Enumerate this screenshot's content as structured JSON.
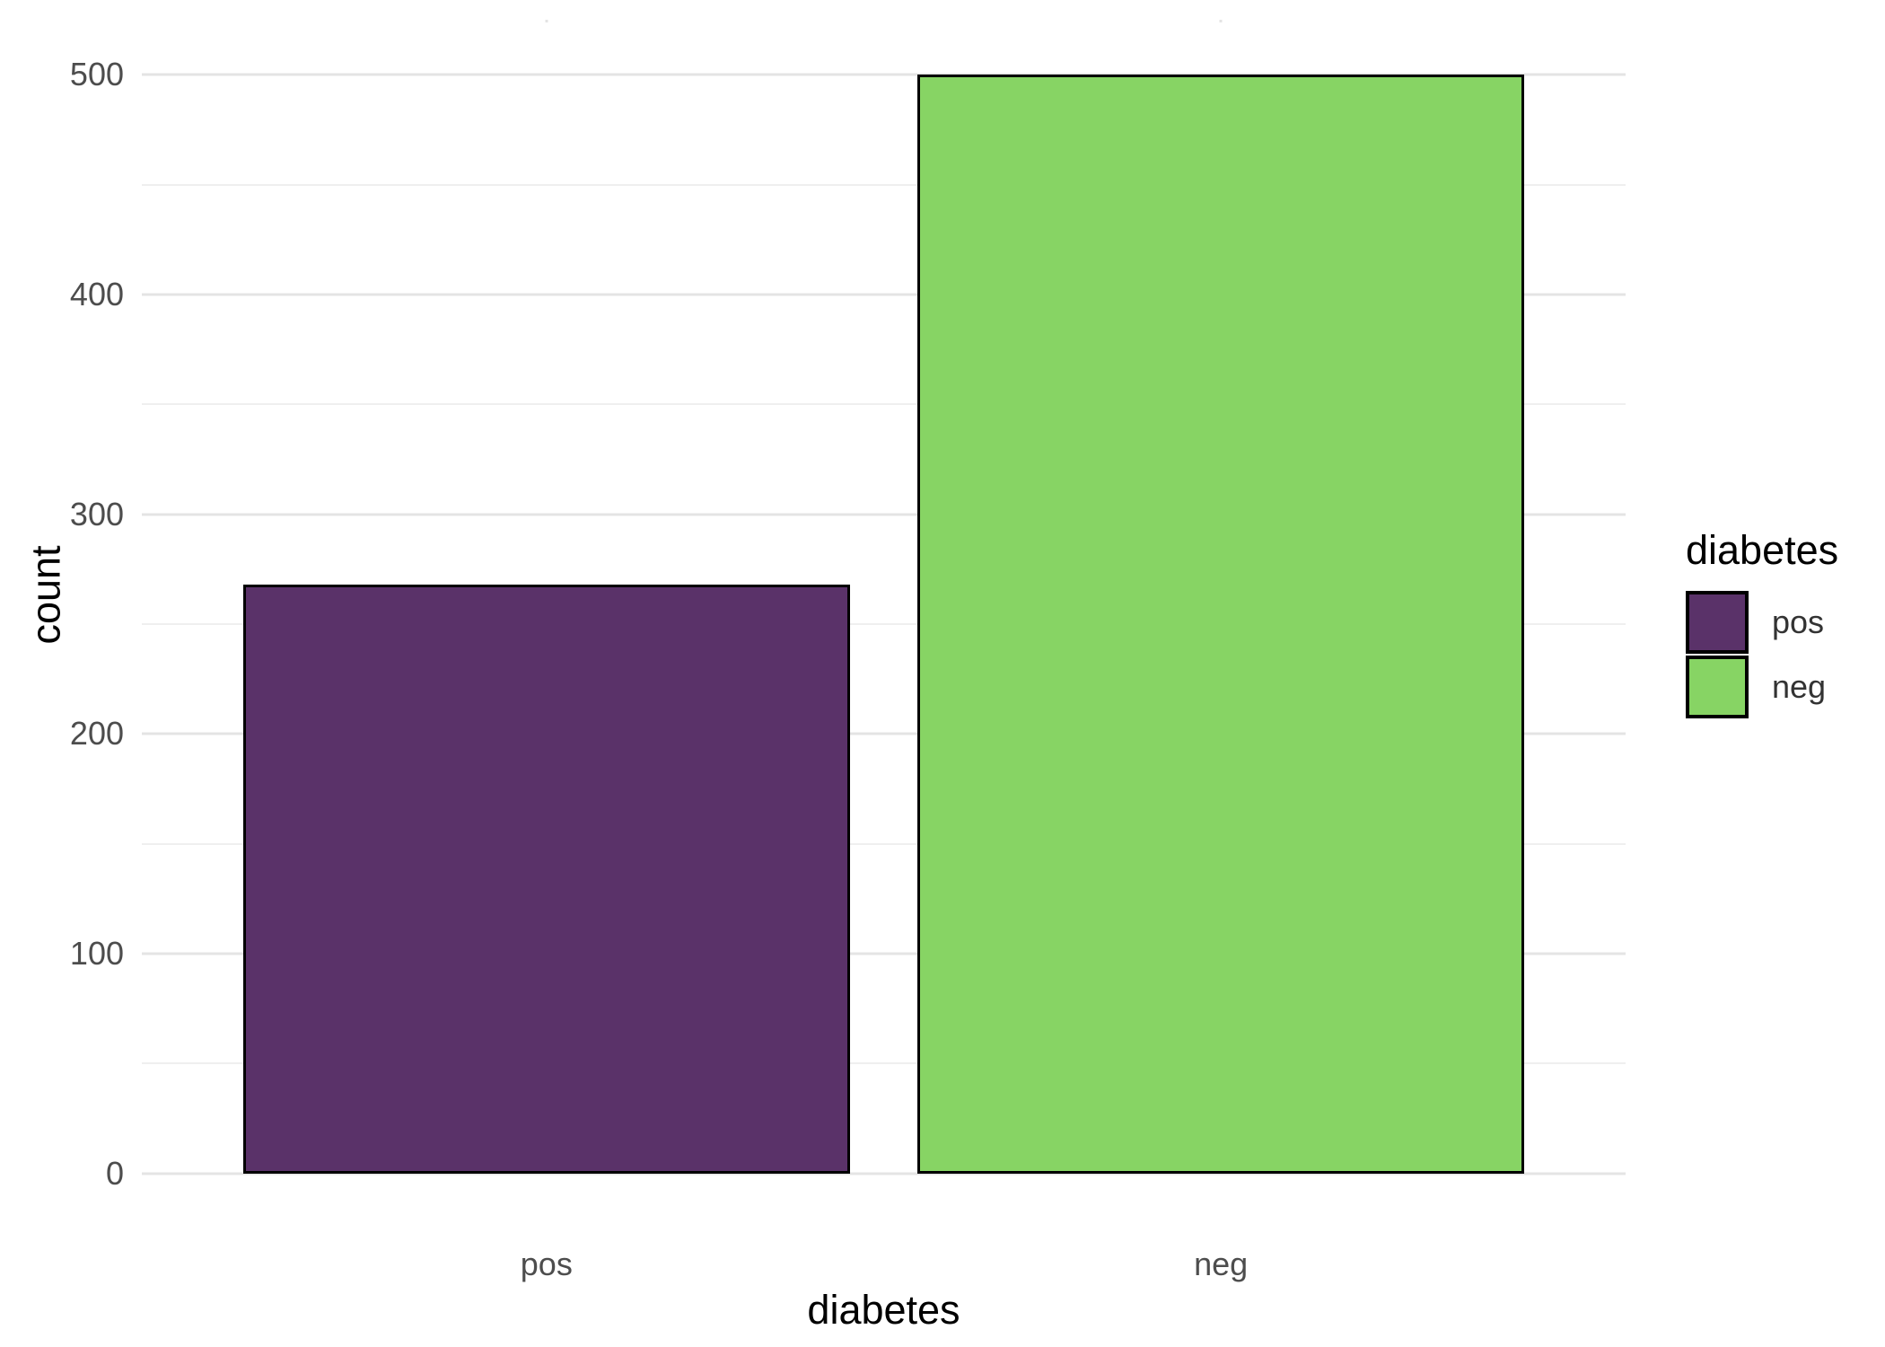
{
  "chart_data": {
    "type": "bar",
    "title": "",
    "xlabel": "diabetes",
    "ylabel": "count",
    "categories": [
      "pos",
      "neg"
    ],
    "values": [
      268,
      500
    ],
    "series_fills": [
      "#5A3269",
      "#87D464"
    ],
    "bar_border_color": "#000000",
    "bar_width_fraction": 0.9,
    "ylim": [
      0,
      500
    ],
    "y_expansion_mult": 0.05,
    "x_discrete_expansion": 0.6,
    "y_major_ticks": [
      0,
      100,
      200,
      300,
      400,
      500
    ],
    "y_major_tick_labels": [
      "0",
      "100",
      "200",
      "300",
      "400",
      "500"
    ],
    "y_minor_ticks": [
      50,
      150,
      250,
      350,
      450
    ],
    "grid": "on",
    "grid_major_color": "#e4e4e4",
    "grid_minor_color": "#efefef",
    "legend_position": "right",
    "legend": {
      "title": "diabetes",
      "entries": [
        {
          "label": "pos",
          "color": "#5A3269"
        },
        {
          "label": "neg",
          "color": "#87D464"
        }
      ]
    }
  },
  "axis_text_color": "#4d4d4d",
  "axis_title_color": "#000000",
  "background_color": "#ffffff"
}
